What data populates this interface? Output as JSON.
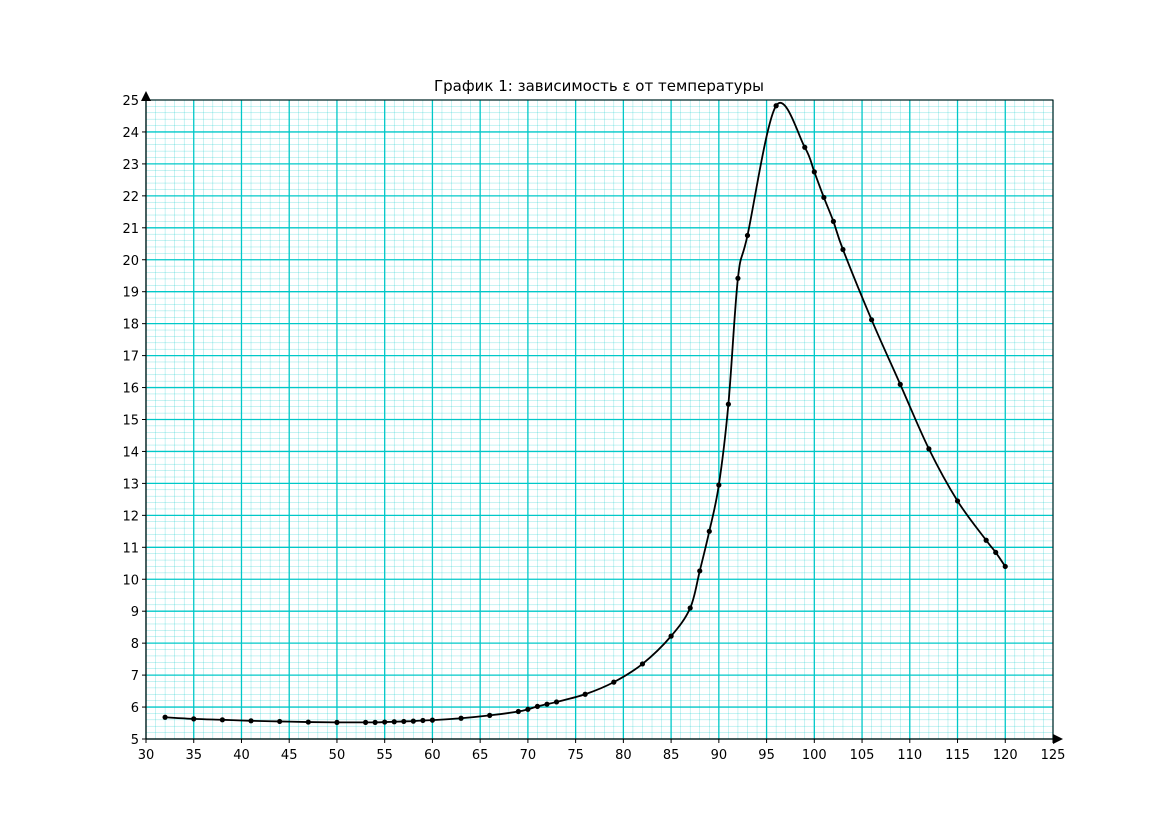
{
  "chart_data": {
    "type": "line",
    "title": "График 1: зависимость ε от температуры",
    "xlabel": "",
    "ylabel": "",
    "xlim": [
      30,
      125
    ],
    "ylim": [
      5,
      25
    ],
    "x_ticks": [
      30,
      35,
      40,
      45,
      50,
      55,
      60,
      65,
      70,
      75,
      80,
      85,
      90,
      95,
      100,
      105,
      110,
      115,
      120,
      125
    ],
    "y_ticks": [
      5,
      6,
      7,
      8,
      9,
      10,
      11,
      12,
      13,
      14,
      15,
      16,
      17,
      18,
      19,
      20,
      21,
      22,
      23,
      24,
      25
    ],
    "grid": true,
    "minor_grid": true,
    "grid_color": "#00c8c8",
    "line_color": "#000000",
    "series": [
      {
        "name": "",
        "points": [
          [
            32,
            5.68
          ],
          [
            35,
            5.63
          ],
          [
            38,
            5.6
          ],
          [
            41,
            5.57
          ],
          [
            44,
            5.55
          ],
          [
            47,
            5.53
          ],
          [
            50,
            5.52
          ],
          [
            53,
            5.52
          ],
          [
            54,
            5.52
          ],
          [
            55,
            5.53
          ],
          [
            56,
            5.54
          ],
          [
            57,
            5.55
          ],
          [
            58,
            5.56
          ],
          [
            59,
            5.58
          ],
          [
            60,
            5.59
          ],
          [
            63,
            5.65
          ],
          [
            66,
            5.74
          ],
          [
            69,
            5.86
          ],
          [
            70,
            5.93
          ],
          [
            71,
            6.02
          ],
          [
            72,
            6.09
          ],
          [
            73,
            6.16
          ],
          [
            76,
            6.4
          ],
          [
            79,
            6.78
          ],
          [
            82,
            7.35
          ],
          [
            85,
            8.22
          ],
          [
            87,
            9.1
          ],
          [
            88,
            10.26
          ],
          [
            89,
            11.5
          ],
          [
            90,
            12.95
          ],
          [
            91,
            15.48
          ],
          [
            92,
            19.42
          ],
          [
            93,
            20.76
          ],
          [
            96,
            24.82
          ],
          [
            99,
            23.52
          ],
          [
            100,
            22.75
          ],
          [
            101,
            21.95
          ],
          [
            102,
            21.2
          ],
          [
            103,
            20.32
          ],
          [
            106,
            18.12
          ],
          [
            109,
            16.1
          ],
          [
            112,
            14.08
          ],
          [
            115,
            12.45
          ],
          [
            118,
            11.22
          ],
          [
            119,
            10.84
          ],
          [
            120,
            10.4
          ]
        ]
      }
    ]
  }
}
